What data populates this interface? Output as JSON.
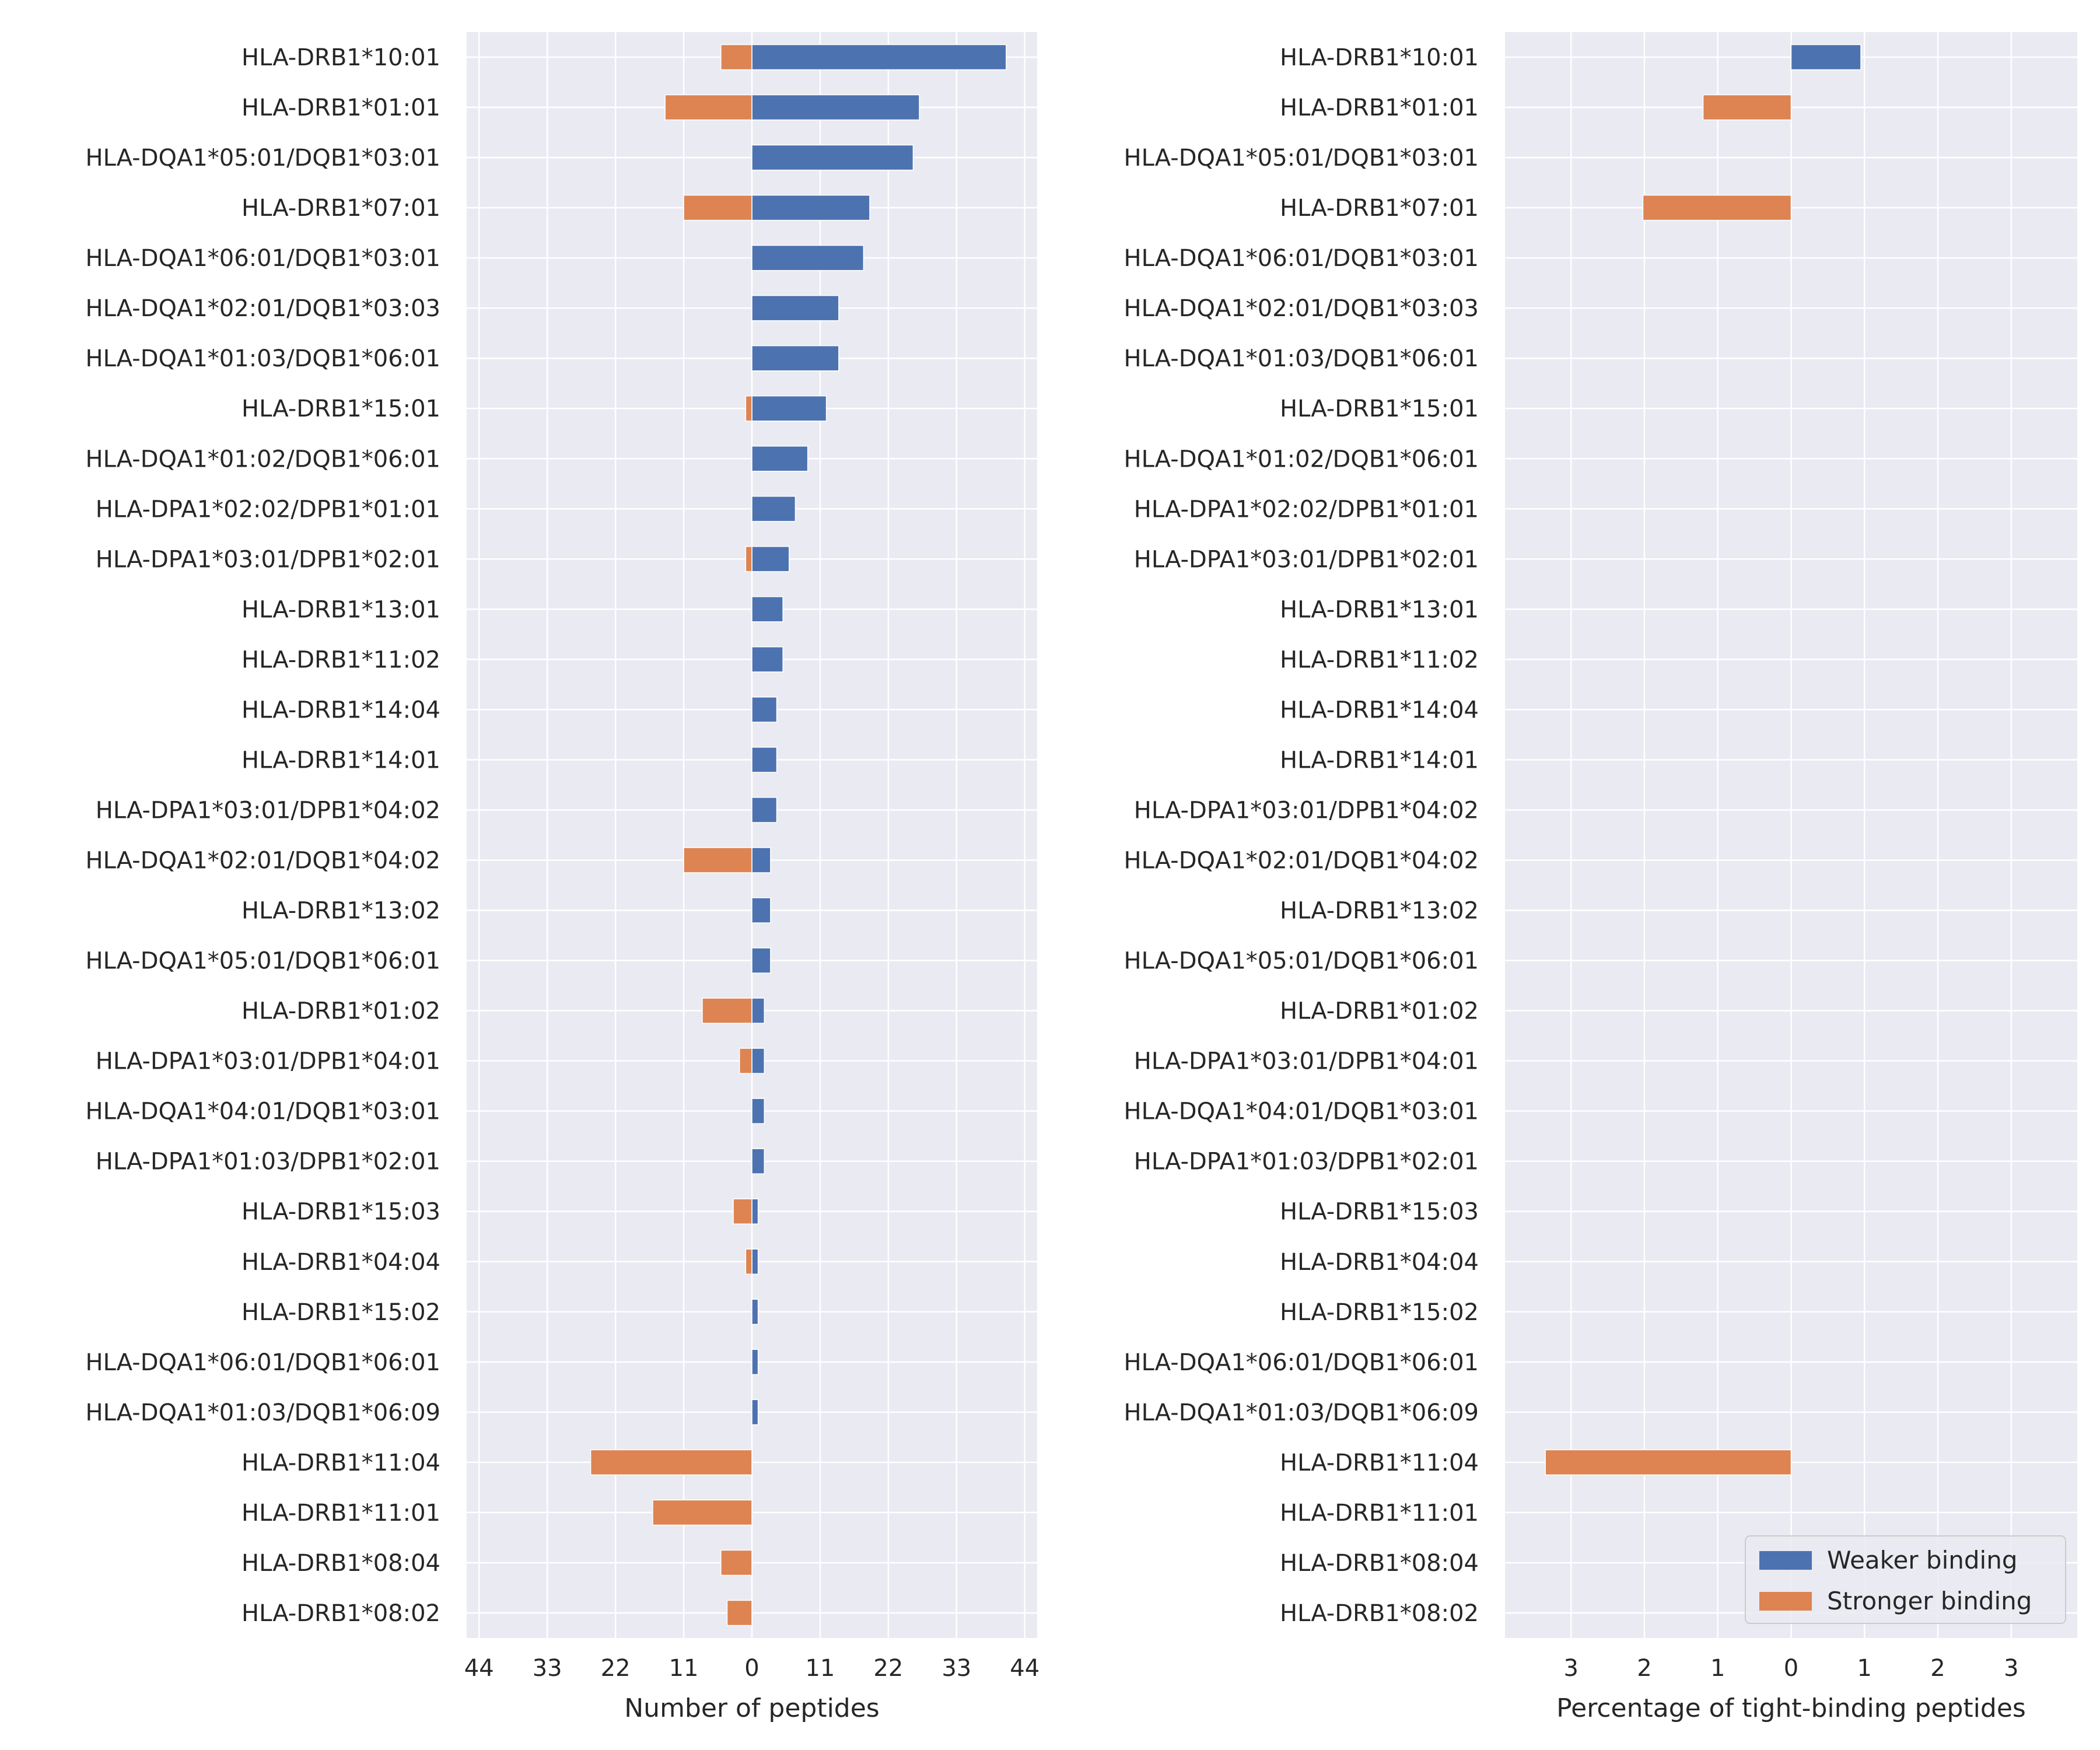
{
  "chart_data": [
    {
      "type": "bar",
      "orientation": "horizontal",
      "diverging": true,
      "xlabel": "Number of peptides",
      "ylabel": "",
      "xlim": [
        -46,
        46
      ],
      "xticks": [
        -44,
        -33,
        -22,
        -11,
        0,
        11,
        22,
        33,
        44
      ],
      "xtick_labels": [
        "44",
        "33",
        "22",
        "11",
        "0",
        "11",
        "22",
        "33",
        "44"
      ],
      "grid": true,
      "categories": [
        "HLA-DRB1*10:01",
        "HLA-DRB1*01:01",
        "HLA-DQA1*05:01/DQB1*03:01",
        "HLA-DRB1*07:01",
        "HLA-DQA1*06:01/DQB1*03:01",
        "HLA-DQA1*02:01/DQB1*03:03",
        "HLA-DQA1*01:03/DQB1*06:01",
        "HLA-DRB1*15:01",
        "HLA-DQA1*01:02/DQB1*06:01",
        "HLA-DPA1*02:02/DPB1*01:01",
        "HLA-DPA1*03:01/DPB1*02:01",
        "HLA-DRB1*13:01",
        "HLA-DRB1*11:02",
        "HLA-DRB1*14:04",
        "HLA-DRB1*14:01",
        "HLA-DPA1*03:01/DPB1*04:02",
        "HLA-DQA1*02:01/DQB1*04:02",
        "HLA-DRB1*13:02",
        "HLA-DQA1*05:01/DQB1*06:01",
        "HLA-DRB1*01:02",
        "HLA-DPA1*03:01/DPB1*04:01",
        "HLA-DQA1*04:01/DQB1*03:01",
        "HLA-DPA1*01:03/DPB1*02:01",
        "HLA-DRB1*15:03",
        "HLA-DRB1*04:04",
        "HLA-DRB1*15:02",
        "HLA-DQA1*06:01/DQB1*06:01",
        "HLA-DQA1*01:03/DQB1*06:09",
        "HLA-DRB1*11:04",
        "HLA-DRB1*11:01",
        "HLA-DRB1*08:04",
        "HLA-DRB1*08:02"
      ],
      "series": [
        {
          "name": "Weaker binding",
          "color": "#4c72b0",
          "values": [
            41,
            27,
            26,
            19,
            18,
            14,
            14,
            12,
            9,
            7,
            6,
            5,
            5,
            4,
            4,
            4,
            3,
            3,
            3,
            2,
            2,
            2,
            2,
            1,
            1,
            1,
            1,
            1,
            0,
            0,
            0,
            0
          ]
        },
        {
          "name": "Stronger binding",
          "color": "#dd8452",
          "values": [
            -5,
            -14,
            0,
            -11,
            0,
            0,
            0,
            -1,
            0,
            0,
            -1,
            0,
            0,
            0,
            0,
            0,
            -11,
            0,
            0,
            -8,
            -2,
            0,
            0,
            -3,
            -1,
            0,
            0,
            0,
            -26,
            -16,
            -5,
            -4
          ]
        }
      ]
    },
    {
      "type": "bar",
      "orientation": "horizontal",
      "diverging": true,
      "xlabel": "Percentage of tight-binding peptides",
      "ylabel": "",
      "xlim": [
        -3.9,
        3.9
      ],
      "xticks": [
        -3,
        -2,
        -1,
        0,
        1,
        2,
        3
      ],
      "xtick_labels": [
        "3",
        "2",
        "1",
        "0",
        "1",
        "2",
        "3"
      ],
      "grid": true,
      "legend": {
        "placement": "lower-right",
        "entries": [
          "Weaker binding",
          "Stronger binding"
        ]
      },
      "categories": [
        "HLA-DRB1*10:01",
        "HLA-DRB1*01:01",
        "HLA-DQA1*05:01/DQB1*03:01",
        "HLA-DRB1*07:01",
        "HLA-DQA1*06:01/DQB1*03:01",
        "HLA-DQA1*02:01/DQB1*03:03",
        "HLA-DQA1*01:03/DQB1*06:01",
        "HLA-DRB1*15:01",
        "HLA-DQA1*01:02/DQB1*06:01",
        "HLA-DPA1*02:02/DPB1*01:01",
        "HLA-DPA1*03:01/DPB1*02:01",
        "HLA-DRB1*13:01",
        "HLA-DRB1*11:02",
        "HLA-DRB1*14:04",
        "HLA-DRB1*14:01",
        "HLA-DPA1*03:01/DPB1*04:02",
        "HLA-DQA1*02:01/DQB1*04:02",
        "HLA-DRB1*13:02",
        "HLA-DQA1*05:01/DQB1*06:01",
        "HLA-DRB1*01:02",
        "HLA-DPA1*03:01/DPB1*04:01",
        "HLA-DQA1*04:01/DQB1*03:01",
        "HLA-DPA1*01:03/DPB1*02:01",
        "HLA-DRB1*15:03",
        "HLA-DRB1*04:04",
        "HLA-DRB1*15:02",
        "HLA-DQA1*06:01/DQB1*06:01",
        "HLA-DQA1*01:03/DQB1*06:09",
        "HLA-DRB1*11:04",
        "HLA-DRB1*11:01",
        "HLA-DRB1*08:04",
        "HLA-DRB1*08:02"
      ],
      "series": [
        {
          "name": "Weaker binding",
          "color": "#4c72b0",
          "values": [
            0.95,
            0,
            0,
            0,
            0,
            0,
            0,
            0,
            0,
            0,
            0,
            0,
            0,
            0,
            0,
            0,
            0,
            0,
            0,
            0,
            0,
            0,
            0,
            0,
            0,
            0,
            0,
            0,
            0,
            0,
            0,
            0
          ]
        },
        {
          "name": "Stronger binding",
          "color": "#dd8452",
          "values": [
            0,
            -1.2,
            0,
            -2.02,
            0,
            0,
            0,
            0,
            0,
            0,
            0,
            0,
            0,
            0,
            0,
            0,
            0,
            0,
            0,
            0,
            0,
            0,
            0,
            0,
            0,
            0,
            0,
            0,
            -3.35,
            0,
            0,
            0
          ]
        }
      ]
    }
  ],
  "colors": {
    "plot_background": "#eaeaf2",
    "grid": "#ffffff",
    "weaker": "#4c72b0",
    "stronger": "#dd8452"
  }
}
